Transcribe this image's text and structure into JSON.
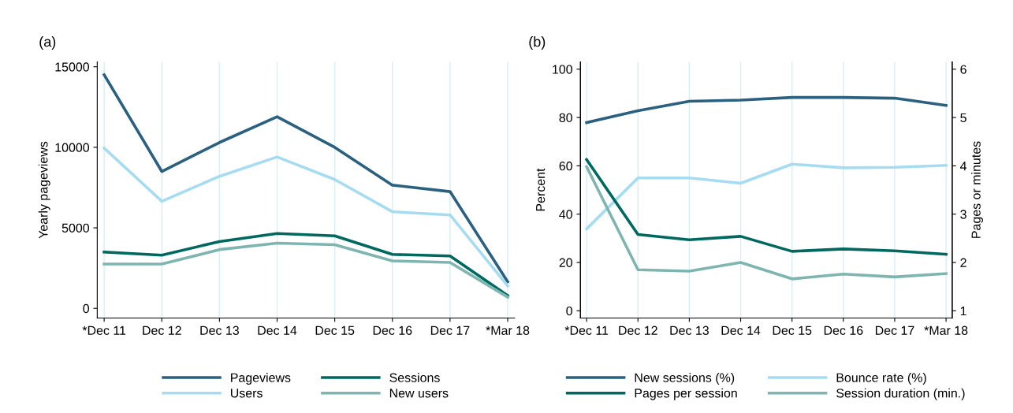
{
  "chart_data": [
    {
      "type": "line",
      "title": "(a)",
      "ylabel": "Yearly pageviews",
      "categories": [
        "*Dec 11",
        "Dec 12",
        "Dec 13",
        "Dec 14",
        "Dec 15",
        "Dec 16",
        "Dec 17",
        "*Mar 18"
      ],
      "ylim": [
        -600,
        15300
      ],
      "yticks": [
        0,
        5000,
        10000,
        15000
      ],
      "grid": "x",
      "legend": "bottom",
      "marker": "none",
      "line_style": "solid",
      "series": [
        {
          "name": "Pageviews",
          "color": "#2a6080",
          "values": [
            14500,
            8500,
            10300,
            11900,
            10000,
            7650,
            7250,
            1650
          ]
        },
        {
          "name": "Users",
          "color": "#a6dcf2",
          "values": [
            9950,
            6650,
            8200,
            9400,
            8000,
            6000,
            5800,
            1400
          ]
        },
        {
          "name": "Sessions",
          "color": "#00695f",
          "values": [
            3500,
            3300,
            4150,
            4650,
            4500,
            3350,
            3250,
            800
          ]
        },
        {
          "name": "New users",
          "color": "#7fb5b0",
          "values": [
            2750,
            2750,
            3650,
            4050,
            3950,
            2950,
            2850,
            700
          ]
        }
      ]
    },
    {
      "type": "line",
      "title": "(b)",
      "ylabel": "Percent",
      "y2label": "Pages or minutes",
      "categories": [
        "*Dec 11",
        "Dec 12",
        "Dec 13",
        "Dec 14",
        "Dec 15",
        "Dec 16",
        "Dec 17",
        "*Mar 18"
      ],
      "ylim": [
        -3,
        103
      ],
      "yticks": [
        0,
        20,
        40,
        60,
        80,
        100
      ],
      "y2lim": [
        0.85,
        6.15
      ],
      "y2ticks": [
        1,
        2,
        3,
        4,
        5,
        6
      ],
      "grid": "x",
      "legend": "bottom",
      "marker": "none",
      "line_style": "solid",
      "series": [
        {
          "name": "New sessions (%)",
          "color": "#2a6080",
          "values": [
            77.9,
            82.8,
            86.7,
            87.2,
            88.3,
            88.3,
            88.0,
            85.0
          ]
        },
        {
          "name": "Pages per session",
          "color": "#00695f",
          "axis": "y2",
          "values": [
            4.13,
            2.58,
            2.47,
            2.54,
            2.23,
            2.28,
            2.24,
            2.17
          ]
        },
        {
          "name": "Bounce rate (%)",
          "color": "#a6dcf2",
          "values": [
            33.9,
            55.0,
            55.0,
            52.8,
            60.7,
            59.2,
            59.4,
            60.2
          ]
        },
        {
          "name": "Session duration (min.)",
          "color": "#7fb5b0",
          "axis": "y2",
          "values": [
            3.98,
            1.85,
            1.82,
            2.0,
            1.66,
            1.76,
            1.7,
            1.77
          ]
        }
      ]
    }
  ]
}
